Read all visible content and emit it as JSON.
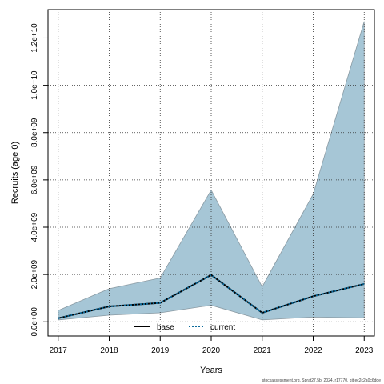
{
  "chart_data": {
    "type": "line",
    "title": "",
    "xlabel": "Years",
    "ylabel": "Recruits (age 0)",
    "x": [
      2017,
      2018,
      2019,
      2020,
      2021,
      2022,
      2023
    ],
    "x_tick_labels": [
      "2017",
      "2018",
      "2019",
      "2020",
      "2021",
      "2022",
      "2023"
    ],
    "y_ticks": [
      0,
      2000000000,
      4000000000,
      6000000000,
      8000000000,
      10000000000,
      12000000000
    ],
    "y_tick_labels": [
      "0.0e+00",
      "2.0e+09",
      "4.0e+09",
      "6.0e+09",
      "8.0e+09",
      "1.0e+10",
      "1.2e+10"
    ],
    "xlim": [
      2016.8,
      2023.2
    ],
    "ylim": [
      -600000000,
      13200000000
    ],
    "grid": true,
    "legend_position": "bottom-center",
    "series": [
      {
        "name": "base",
        "style": "solid",
        "color": "#000000",
        "values": [
          150000000,
          650000000,
          800000000,
          1980000000,
          380000000,
          1080000000,
          1600000000
        ]
      },
      {
        "name": "current",
        "style": "dotted",
        "color": "#0d6b9c",
        "values": [
          150000000,
          650000000,
          800000000,
          1980000000,
          380000000,
          1080000000,
          1600000000
        ]
      }
    ],
    "band": {
      "color": "#a6c6d6",
      "lower": [
        80000000,
        280000000,
        380000000,
        700000000,
        80000000,
        200000000,
        170000000
      ],
      "upper": [
        480000000,
        1400000000,
        1850000000,
        5570000000,
        1480000000,
        5400000000,
        12700000000
      ]
    }
  },
  "footer": "stockassessment.org, Sprat27.5b_2024, r17770, git:ec2c2a0c6dde"
}
